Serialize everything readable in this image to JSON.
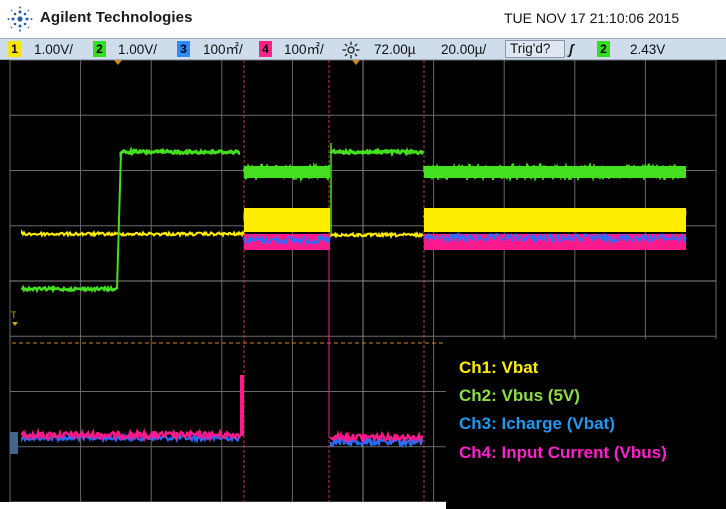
{
  "header": {
    "brand": "Agilent Technologies",
    "datetime": "TUE NOV 17 21:10:06 2015"
  },
  "statusbar": {
    "ch1": {
      "num": "1",
      "scale": "1.00V/",
      "color": "#f5e600"
    },
    "ch2": {
      "num": "2",
      "scale": "1.00V/",
      "color": "#33dd22"
    },
    "ch3": {
      "num": "3",
      "scale": "100㎡/",
      "color": "#3388ff"
    },
    "ch4": {
      "num": "4",
      "scale": "100㎡/",
      "color": "#ff2288"
    },
    "delay": "72.00µ",
    "timebase": "20.00µ/",
    "trig_status": "Trig'd?",
    "trig_slope": "ʃ",
    "trig_channel": "2",
    "trig_level": "2.43V"
  },
  "markers": {
    "ground_marker": "T"
  },
  "legend": {
    "ch1": {
      "text": "Ch1: Vbat",
      "color": "#ffee00"
    },
    "ch2": {
      "text": "Ch2: Vbus (5V)",
      "color": "#8fdd44"
    },
    "ch3": {
      "text": "Ch3: Icharge (Vbat)",
      "color": "#2299ee"
    },
    "ch4": {
      "text": "Ch4: Input Current (Vbus)",
      "color": "#ff22cc"
    }
  }
}
